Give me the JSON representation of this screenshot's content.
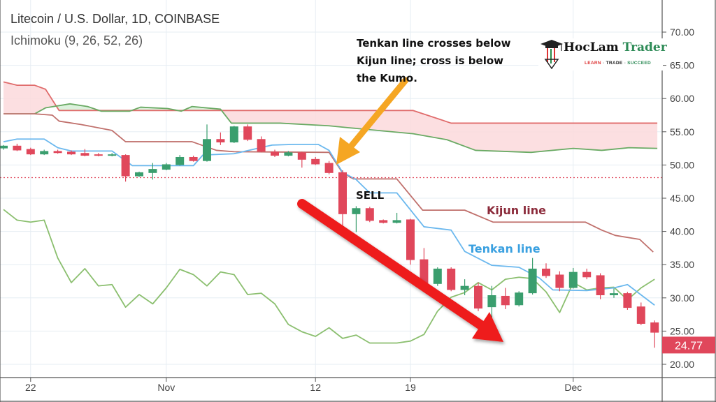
{
  "header": {
    "symbol_title": "Litecoin / U.S. Dollar, 1D, COINBASE",
    "indicator": "Ichimoku (9, 26, 52, 26)"
  },
  "logo": {
    "name_part1": "HocLam",
    "name_part2": "Trader",
    "tagline_learn": "LEARN",
    "tagline_trade": "TRADE",
    "tagline_succeed": "SUCCEED",
    "separator": " - "
  },
  "chart_data": {
    "type": "candlestick",
    "title": "Litecoin / U.S. Dollar, 1D, COINBASE",
    "ylim": [
      20,
      70
    ],
    "y_ticks": [
      "20.00",
      "25.00",
      "30.00",
      "35.00",
      "40.00",
      "45.00",
      "50.00",
      "55.00",
      "60.00",
      "65.00",
      "70.00"
    ],
    "x_ticks": [
      {
        "label": "22",
        "day": 2
      },
      {
        "label": "Nov",
        "day": 12
      },
      {
        "label": "12",
        "day": 23
      },
      {
        "label": "19",
        "day": 30
      },
      {
        "label": "Dec",
        "day": 42
      }
    ],
    "grid": true,
    "last_price": "24.77",
    "horizontal_line": 48.1,
    "colors": {
      "up": "#3a9e6e",
      "down": "#e0475b",
      "tenkan": "#6bb8ee",
      "kijun": "#c0706c",
      "senkou_a": "#6aaa64",
      "senkou_b": "#e06c6c",
      "chikou": "#8bbf6f",
      "cloud_bear": "#fbd9dc",
      "cloud_bull": "#d6efd6",
      "price_label": "#e0475b",
      "annotation_arrow": "#f5a623",
      "sell_arrow": "#ee1c1c"
    },
    "candles": [
      [
        52.5,
        53.0,
        52.3,
        52.9
      ],
      [
        52.9,
        53.2,
        52.1,
        52.2
      ],
      [
        52.4,
        52.6,
        51.5,
        51.6
      ],
      [
        51.6,
        52.3,
        51.5,
        52.1
      ],
      [
        52.1,
        52.3,
        51.7,
        51.8
      ],
      [
        52.0,
        52.2,
        51.5,
        51.6
      ],
      [
        51.8,
        52.4,
        51.3,
        51.4
      ],
      [
        51.6,
        51.8,
        51.3,
        51.4
      ],
      [
        51.4,
        51.8,
        51.3,
        51.6
      ],
      [
        51.5,
        51.6,
        47.5,
        48.3
      ],
      [
        48.3,
        49.0,
        48.2,
        48.9
      ],
      [
        48.8,
        50.3,
        47.8,
        49.4
      ],
      [
        49.3,
        50.3,
        49.2,
        50.1
      ],
      [
        50.0,
        51.5,
        49.9,
        51.2
      ],
      [
        51.2,
        51.4,
        50.5,
        50.6
      ],
      [
        50.6,
        56.1,
        50.5,
        53.9
      ],
      [
        53.9,
        54.9,
        53.0,
        53.4
      ],
      [
        53.4,
        55.9,
        53.3,
        55.8
      ],
      [
        55.8,
        56.1,
        53.6,
        53.8
      ],
      [
        53.9,
        54.3,
        51.9,
        52.0
      ],
      [
        52.0,
        52.3,
        51.2,
        51.4
      ],
      [
        51.4,
        52.1,
        51.3,
        51.9
      ],
      [
        51.9,
        52.0,
        49.6,
        50.8
      ],
      [
        50.9,
        51.2,
        50.0,
        50.1
      ],
      [
        50.3,
        50.6,
        48.6,
        48.8
      ],
      [
        48.9,
        49.2,
        40.9,
        42.6
      ],
      [
        42.6,
        43.8,
        39.9,
        43.5
      ],
      [
        43.5,
        43.7,
        41.4,
        41.6
      ],
      [
        41.7,
        41.8,
        41.2,
        41.3
      ],
      [
        41.3,
        42.8,
        41.2,
        41.7
      ],
      [
        41.8,
        41.9,
        35.0,
        35.7
      ],
      [
        35.8,
        37.5,
        32.0,
        32.2
      ],
      [
        32.1,
        34.6,
        31.8,
        34.4
      ],
      [
        34.4,
        34.6,
        31.0,
        31.2
      ],
      [
        31.2,
        32.8,
        30.4,
        31.8
      ],
      [
        31.8,
        32.3,
        28.0,
        28.4
      ],
      [
        28.6,
        31.8,
        26.5,
        30.4
      ],
      [
        30.3,
        31.5,
        28.3,
        28.9
      ],
      [
        28.9,
        31.0,
        28.7,
        30.8
      ],
      [
        30.7,
        36.0,
        30.5,
        34.4
      ],
      [
        34.4,
        35.2,
        33.0,
        33.3
      ],
      [
        33.5,
        34.0,
        31.0,
        31.5
      ],
      [
        31.5,
        34.5,
        31.4,
        33.9
      ],
      [
        33.9,
        34.4,
        32.8,
        33.1
      ],
      [
        33.4,
        33.7,
        29.8,
        30.4
      ],
      [
        30.4,
        31.4,
        30.0,
        30.7
      ],
      [
        30.7,
        30.9,
        28.2,
        28.5
      ],
      [
        28.7,
        29.3,
        25.9,
        26.1
      ],
      [
        26.3,
        26.6,
        22.5,
        24.77
      ]
    ],
    "candle_format": [
      "open",
      "high",
      "low",
      "close"
    ],
    "lines": {
      "tenkan": [
        [
          0,
          53.5
        ],
        [
          1,
          53.9
        ],
        [
          3,
          53.9
        ],
        [
          4,
          52.6
        ],
        [
          5,
          52.1
        ],
        [
          8,
          52.1
        ],
        [
          9.5,
          49.9
        ],
        [
          14,
          49.9
        ],
        [
          14.7,
          51.5
        ],
        [
          17,
          51.7
        ],
        [
          19.8,
          53
        ],
        [
          21.4,
          53.1
        ],
        [
          23.2,
          53.1
        ],
        [
          24,
          52.2
        ],
        [
          25,
          48.9
        ],
        [
          26,
          47.8
        ],
        [
          27,
          45.8
        ],
        [
          29,
          45.8
        ],
        [
          31,
          40.7
        ],
        [
          33,
          40.2
        ],
        [
          34,
          37
        ],
        [
          36,
          34.9
        ],
        [
          38,
          34.6
        ],
        [
          39.5,
          33
        ],
        [
          40.5,
          31.2
        ],
        [
          43,
          31.1
        ],
        [
          45,
          31.5
        ],
        [
          46,
          32
        ],
        [
          48,
          28.9
        ]
      ],
      "kijun": [
        [
          0,
          57.7
        ],
        [
          2.3,
          57.7
        ],
        [
          3.6,
          57.5
        ],
        [
          4.1,
          56.6
        ],
        [
          5.7,
          56.1
        ],
        [
          8,
          55.2
        ],
        [
          9,
          53.5
        ],
        [
          13.9,
          53.5
        ],
        [
          15.7,
          52.2
        ],
        [
          17,
          52
        ],
        [
          24,
          51.9
        ],
        [
          25,
          48.8
        ],
        [
          25.8,
          47.9
        ],
        [
          29,
          47.9
        ],
        [
          30.9,
          43.2
        ],
        [
          34,
          43.2
        ],
        [
          36.1,
          41.4
        ],
        [
          42.9,
          41.4
        ],
        [
          44.1,
          40.2
        ],
        [
          45.1,
          39.4
        ],
        [
          46.9,
          38.8
        ],
        [
          47.9,
          36.9
        ]
      ],
      "senkou_a": [
        [
          0,
          57.7
        ],
        [
          2.3,
          57.7
        ],
        [
          3.1,
          58.6
        ],
        [
          4.9,
          59.2
        ],
        [
          6.2,
          58.8
        ],
        [
          7.2,
          58.1
        ],
        [
          9.3,
          58.1
        ],
        [
          10.1,
          58.7
        ],
        [
          12.1,
          58.5
        ],
        [
          13.1,
          58.1
        ],
        [
          13.9,
          58.8
        ],
        [
          16,
          58.4
        ],
        [
          16.8,
          56.3
        ],
        [
          20.4,
          56.3
        ],
        [
          24,
          55.9
        ],
        [
          25.5,
          55.6
        ],
        [
          30.2,
          54.7
        ],
        [
          32.7,
          53.8
        ],
        [
          34.8,
          52.2
        ],
        [
          38.9,
          51.9
        ],
        [
          42,
          52.5
        ],
        [
          44.1,
          52.2
        ],
        [
          46.1,
          52.6
        ],
        [
          48.2,
          52.5
        ]
      ],
      "senkou_b": [
        [
          0,
          62.5
        ],
        [
          1,
          62
        ],
        [
          2.3,
          62
        ],
        [
          3.1,
          61.4
        ],
        [
          4.1,
          58.2
        ],
        [
          30.2,
          58.2
        ],
        [
          33,
          56.3
        ],
        [
          48.2,
          56.3
        ]
      ],
      "chikou": [
        [
          0,
          43.3
        ],
        [
          1,
          41.7
        ],
        [
          2,
          41.4
        ],
        [
          3,
          41.7
        ],
        [
          4,
          36
        ],
        [
          5,
          32.3
        ],
        [
          6,
          34.4
        ],
        [
          7,
          31.8
        ],
        [
          8,
          32
        ],
        [
          9,
          28.6
        ],
        [
          10,
          30.5
        ],
        [
          11,
          29.1
        ],
        [
          12,
          31.5
        ],
        [
          13,
          34.3
        ],
        [
          14,
          33.5
        ],
        [
          15,
          31.8
        ],
        [
          16,
          33.9
        ],
        [
          17,
          33.5
        ],
        [
          18,
          30.5
        ],
        [
          19,
          30.7
        ],
        [
          20,
          29.1
        ],
        [
          21,
          26
        ],
        [
          22,
          24.9
        ],
        [
          23,
          24.2
        ],
        [
          24,
          25.5
        ],
        [
          25,
          23.9
        ],
        [
          26,
          24.4
        ],
        [
          27,
          23.2
        ],
        [
          28,
          23.2
        ],
        [
          29,
          23.2
        ],
        [
          30,
          23.5
        ],
        [
          31,
          24.5
        ],
        [
          32,
          28
        ],
        [
          33,
          30.1
        ],
        [
          34,
          30.8
        ],
        [
          35,
          32.3
        ],
        [
          36,
          31.2
        ],
        [
          37,
          32.8
        ],
        [
          38,
          33.1
        ],
        [
          39,
          32.9
        ],
        [
          40,
          30.9
        ],
        [
          41,
          27.8
        ],
        [
          42,
          32.3
        ],
        [
          43,
          31.2
        ],
        [
          44,
          31.5
        ],
        [
          45,
          31.6
        ],
        [
          46,
          29.7
        ],
        [
          47,
          31.5
        ],
        [
          48,
          32.8
        ]
      ]
    },
    "annotations": {
      "cross_note_line1": "Tenkan line crosses below",
      "cross_note_line2": "Kijun line; cross is below",
      "cross_note_line3": "the Kumo.",
      "sell": "SELL",
      "kijun_label": "Kijun line",
      "tenkan_label": "Tenkan line"
    }
  }
}
